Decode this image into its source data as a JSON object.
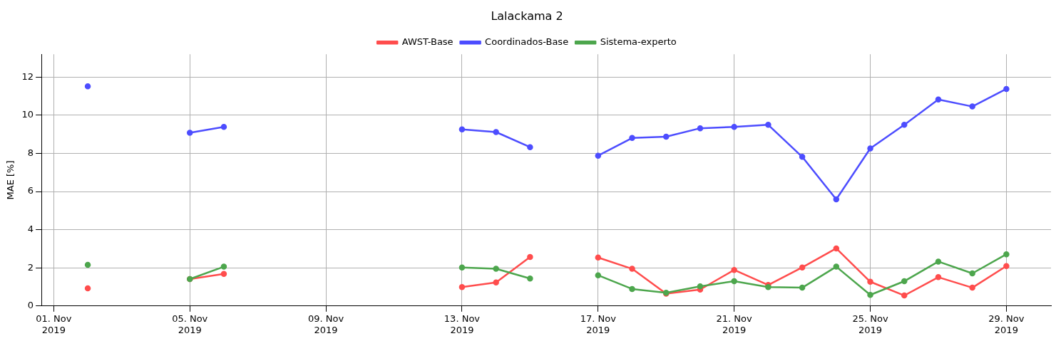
{
  "chart_data": {
    "type": "line",
    "title": "Lalackama 2",
    "ylabel": "MAE [%]",
    "x": [
      "2019-11-02",
      "2019-11-03",
      "2019-11-04",
      "2019-11-05",
      "2019-11-06",
      "2019-11-07",
      "2019-11-08",
      "2019-11-09",
      "2019-11-10",
      "2019-11-11",
      "2019-11-12",
      "2019-11-13",
      "2019-11-14",
      "2019-11-15",
      "2019-11-16",
      "2019-11-17",
      "2019-11-18",
      "2019-11-19",
      "2019-11-20",
      "2019-11-21",
      "2019-11-22",
      "2019-11-23",
      "2019-11-24",
      "2019-11-25",
      "2019-11-26",
      "2019-11-27",
      "2019-11-28",
      "2019-11-29"
    ],
    "series": [
      {
        "name": "AWST-Base",
        "color": "#ff4d4d",
        "values": [
          0.93,
          null,
          null,
          1.41,
          1.68,
          null,
          null,
          null,
          null,
          null,
          null,
          0.99,
          1.23,
          2.57,
          null,
          2.54,
          1.95,
          0.65,
          0.86,
          1.89,
          1.1,
          2.02,
          3.02,
          1.27,
          0.55,
          1.51,
          0.96,
          2.09
        ]
      },
      {
        "name": "Coordinados-Base",
        "color": "#4d4dff",
        "values": [
          11.52,
          null,
          null,
          9.08,
          9.39,
          null,
          null,
          null,
          null,
          null,
          null,
          9.26,
          9.12,
          8.33,
          null,
          7.88,
          8.81,
          8.88,
          9.32,
          9.39,
          9.5,
          7.82,
          5.59,
          8.26,
          9.5,
          10.83,
          10.46,
          11.38
        ]
      },
      {
        "name": "Sistema-experto",
        "color": "#4da64d",
        "values": [
          2.16,
          null,
          null,
          1.41,
          2.06,
          null,
          null,
          null,
          null,
          null,
          null,
          2.02,
          1.95,
          1.44,
          null,
          1.61,
          0.89,
          0.69,
          1.03,
          1.3,
          0.99,
          0.96,
          2.06,
          0.58,
          1.3,
          2.33,
          1.71,
          2.71
        ]
      }
    ],
    "xlim": [
      "2019-10-31T15:20",
      "2019-11-30T07:30"
    ],
    "xticks": [
      {
        "value": "2019-11-01",
        "label": "01. Nov 2019"
      },
      {
        "value": "2019-11-05",
        "label": "05. Nov 2019"
      },
      {
        "value": "2019-11-09",
        "label": "09. Nov 2019"
      },
      {
        "value": "2019-11-13",
        "label": "13. Nov 2019"
      },
      {
        "value": "2019-11-17",
        "label": "17. Nov 2019"
      },
      {
        "value": "2019-11-21",
        "label": "21. Nov 2019"
      },
      {
        "value": "2019-11-25",
        "label": "25. Nov 2019"
      },
      {
        "value": "2019-11-29",
        "label": "29. Nov 2019"
      }
    ],
    "ylim": [
      0,
      13.2
    ],
    "yticks": [
      0,
      2,
      4,
      6,
      8,
      10,
      12
    ],
    "grid": true,
    "legend": "top",
    "marker": "circle",
    "line_style": "solid"
  }
}
